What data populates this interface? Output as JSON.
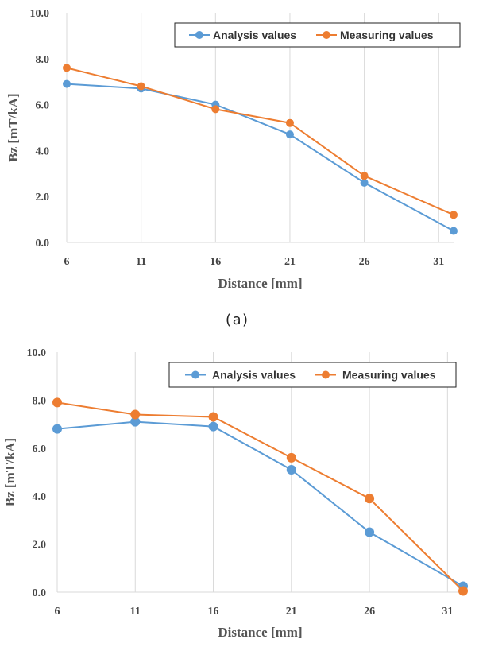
{
  "charts": [
    {
      "chart_data": {
        "type": "line",
        "x": [
          6,
          11,
          16,
          21,
          26,
          32
        ],
        "series": [
          {
            "name": "Analysis values",
            "color": "#5b9bd5",
            "values": [
              6.9,
              6.7,
              6.0,
              4.7,
              2.6,
              0.5
            ]
          },
          {
            "name": "Measuring values",
            "color": "#ed7d31",
            "values": [
              7.6,
              6.8,
              5.8,
              5.2,
              2.9,
              1.2
            ]
          }
        ],
        "xlabel": "Distance [mm]",
        "ylabel": "Bz [mT/kA]",
        "xticks": [
          "6",
          "11",
          "16",
          "21",
          "26",
          "31"
        ],
        "yticks": [
          "0.0",
          "2.0",
          "4.0",
          "6.0",
          "8.0",
          "10.0"
        ],
        "xlim": [
          6,
          32
        ],
        "ylim": [
          0,
          10
        ],
        "grid": "vertical",
        "legend": "top-right"
      },
      "caption": "(a)"
    },
    {
      "chart_data": {
        "type": "line",
        "x": [
          6,
          11,
          16,
          21,
          26,
          32
        ],
        "series": [
          {
            "name": "Analysis values",
            "color": "#5b9bd5",
            "values": [
              6.8,
              7.1,
              6.9,
              5.1,
              2.5,
              0.25
            ]
          },
          {
            "name": "Measuring values",
            "color": "#ed7d31",
            "values": [
              7.9,
              7.4,
              7.3,
              5.6,
              3.9,
              0.05
            ]
          }
        ],
        "xlabel": "Distance [mm]",
        "ylabel": "Bz [mT/kA]",
        "xticks": [
          "6",
          "11",
          "16",
          "21",
          "26",
          "31"
        ],
        "yticks": [
          "0.0",
          "2.0",
          "4.0",
          "6.0",
          "8.0",
          "10.0"
        ],
        "xlim": [
          6,
          32
        ],
        "ylim": [
          0,
          10
        ],
        "grid": "vertical",
        "legend": "top-right"
      }
    }
  ]
}
